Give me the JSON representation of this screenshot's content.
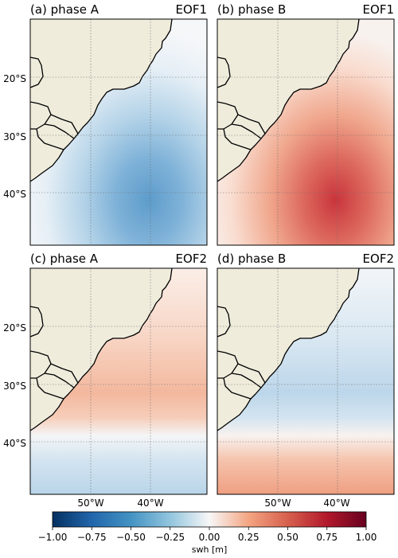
{
  "figure": {
    "panels": [
      {
        "title": "(a) phase A",
        "mode": "EOF1",
        "pattern": "neg-center"
      },
      {
        "title": "(b) phase B",
        "mode": "EOF1",
        "pattern": "pos-center"
      },
      {
        "title": "(c) phase A",
        "mode": "EOF2",
        "pattern": "dipole-pos-north"
      },
      {
        "title": "(d) phase B",
        "mode": "EOF2",
        "pattern": "dipole-neg-north"
      }
    ],
    "lat_labels": [
      "20°S",
      "30°S",
      "40°S"
    ],
    "lon_labels": [
      "50°W",
      "40°W"
    ],
    "colorbar": {
      "label": "swh [m]",
      "ticks": [
        "−1.00",
        "−0.75",
        "−0.50",
        "−0.25",
        "0.00",
        "0.25",
        "0.50",
        "0.75",
        "1.00"
      ],
      "colormap": "RdBu_r",
      "range": [
        -1.0,
        1.0
      ]
    },
    "colors": {
      "land": "#efecdc",
      "negative": "#2166ac",
      "positive": "#b2182b",
      "neutral": "#f7f7f7"
    }
  }
}
